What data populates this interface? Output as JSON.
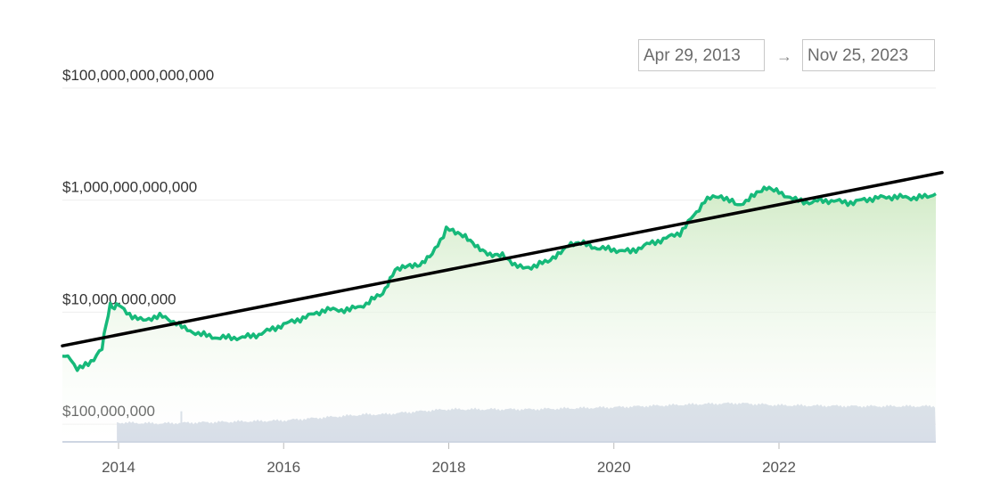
{
  "date_range": {
    "start": "Apr 29, 2013",
    "arrow": "→",
    "end": "Nov 25, 2023"
  },
  "colors": {
    "price_line": "#16b97a",
    "area_top": "#cfeac4",
    "trend_line": "#000000",
    "volume": "#ced6e2",
    "grid": "#eeeeee"
  },
  "chart_data": {
    "type": "line",
    "title": "",
    "xlabel": "",
    "ylabel": "",
    "y_scale": "log",
    "ylim": [
      50000000,
      200000000000000
    ],
    "xlim": [
      2013.32,
      2023.9
    ],
    "y_ticks": [
      {
        "value": 100000000,
        "label": "$100,000,000"
      },
      {
        "value": 10000000000,
        "label": "$10,000,000,000"
      },
      {
        "value": 1000000000000,
        "label": "$1,000,000,000,000"
      },
      {
        "value": 100000000000000,
        "label": "$100,000,000,000,000"
      }
    ],
    "x_ticks": [
      {
        "value": 2014,
        "label": "2014"
      },
      {
        "value": 2016,
        "label": "2016"
      },
      {
        "value": 2018,
        "label": "2018"
      },
      {
        "value": 2020,
        "label": "2020"
      },
      {
        "value": 2022,
        "label": "2022"
      }
    ],
    "grid": true,
    "legend": "none",
    "series": [
      {
        "type": "area",
        "x": [
          2013.32,
          2013.42,
          2013.5,
          2013.6,
          2013.7,
          2013.8,
          2013.85,
          2013.9,
          2013.95,
          2014.0,
          2014.1,
          2014.2,
          2014.3,
          2014.4,
          2014.5,
          2014.6,
          2014.7,
          2014.8,
          2015.0,
          2015.2,
          2015.5,
          2015.7,
          2016.0,
          2016.3,
          2016.5,
          2016.8,
          2017.0,
          2017.2,
          2017.35,
          2017.5,
          2017.65,
          2017.8,
          2017.9,
          2017.97,
          2018.05,
          2018.2,
          2018.35,
          2018.5,
          2018.65,
          2018.8,
          2018.9,
          2019.0,
          2019.2,
          2019.45,
          2019.6,
          2019.8,
          2020.0,
          2020.2,
          2020.4,
          2020.6,
          2020.8,
          2021.0,
          2021.1,
          2021.3,
          2021.5,
          2021.7,
          2021.85,
          2022.0,
          2022.2,
          2022.4,
          2022.5,
          2022.7,
          2022.9,
          2023.0,
          2023.2,
          2023.4,
          2023.6,
          2023.8,
          2023.9
        ],
        "y": [
          1600000000,
          1500000000,
          900000000,
          1200000000,
          1400000000,
          2200000000,
          6000000000,
          14000000000,
          12000000000,
          13000000000,
          10000000000,
          8000000000,
          7000000000,
          8000000000,
          8500000000,
          7500000000,
          6500000000,
          5000000000,
          4000000000,
          3500000000,
          3500000000,
          4000000000,
          6000000000,
          8500000000,
          11000000000,
          11000000000,
          14000000000,
          22000000000,
          60000000000,
          70000000000,
          70000000000,
          110000000000,
          180000000000,
          320000000000,
          280000000000,
          230000000000,
          150000000000,
          110000000000,
          110000000000,
          70000000000,
          60000000000,
          65000000000,
          80000000000,
          160000000000,
          170000000000,
          140000000000,
          130000000000,
          120000000000,
          160000000000,
          200000000000,
          260000000000,
          600000000000,
          1000000000000,
          1200000000000,
          800000000000,
          1200000000000,
          1600000000000,
          1400000000000,
          1000000000000,
          900000000000,
          1000000000000,
          950000000000,
          900000000000,
          1000000000000,
          1100000000000,
          1150000000000,
          1100000000000,
          1150000000000,
          1300000000000
        ]
      },
      {
        "type": "trend",
        "x": [
          2013.32,
          2023.9
        ],
        "y": [
          2500000000,
          3000000000000
        ]
      },
      {
        "type": "volume",
        "start": 2013.98,
        "end": 2023.9,
        "x": [
          2013.98,
          2014.5,
          2015.0,
          2015.5,
          2016.0,
          2016.5,
          2017.0,
          2017.2,
          2017.8,
          2018.0,
          2019.0,
          2020.0,
          2021.0,
          2021.5,
          2022.0,
          2023.0,
          2023.9
        ],
        "v": [
          0.4,
          0.38,
          0.4,
          0.42,
          0.44,
          0.5,
          0.56,
          0.56,
          0.64,
          0.66,
          0.66,
          0.7,
          0.76,
          0.78,
          0.74,
          0.72,
          0.72
        ]
      }
    ]
  }
}
